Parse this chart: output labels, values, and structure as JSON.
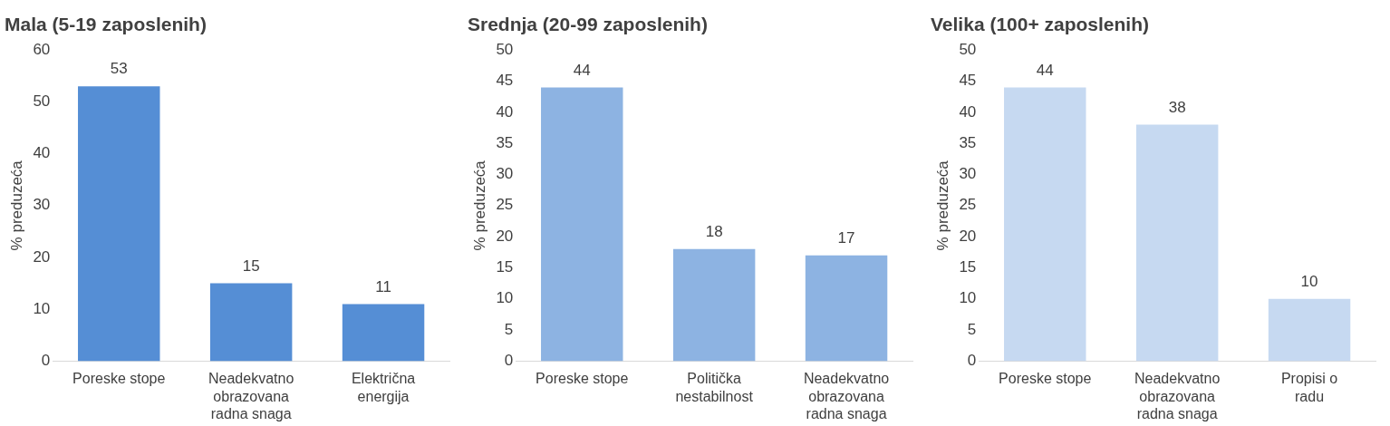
{
  "chart_data": [
    {
      "type": "bar",
      "title": "Mala (5-19 zaposlenih)",
      "ylabel": "% preduzeća",
      "categories": [
        "Poreske stope",
        "Neadekvatno obrazovana radna snaga",
        "Električna energija"
      ],
      "values": [
        53,
        15,
        11
      ],
      "color": "#558ed5",
      "ylim": [
        0,
        60
      ],
      "yticks": [
        0,
        10,
        20,
        30,
        40,
        50,
        60
      ],
      "grid": false,
      "data_labels": true,
      "legend": false
    },
    {
      "type": "bar",
      "title": "Srednja (20-99 zaposlenih)",
      "ylabel": "% preduzeća",
      "categories": [
        "Poreske stope",
        "Politička nestabilnost",
        "Neadekvatno obrazovana radna snaga"
      ],
      "values": [
        44,
        18,
        17
      ],
      "color": "#8db3e2",
      "ylim": [
        0,
        50
      ],
      "yticks": [
        0,
        5,
        10,
        15,
        20,
        25,
        30,
        35,
        40,
        45,
        50
      ],
      "grid": false,
      "data_labels": true,
      "legend": false
    },
    {
      "type": "bar",
      "title": "Velika (100+ zaposlenih)",
      "ylabel": "% preduzeća",
      "categories": [
        "Poreske stope",
        "Neadekvatno obrazovana radna snaga",
        "Propisi o radu"
      ],
      "values": [
        44,
        38,
        10
      ],
      "color": "#c6d9f1",
      "ylim": [
        0,
        50
      ],
      "yticks": [
        0,
        5,
        10,
        15,
        20,
        25,
        30,
        35,
        40,
        45,
        50
      ],
      "grid": false,
      "data_labels": true,
      "legend": false
    }
  ]
}
